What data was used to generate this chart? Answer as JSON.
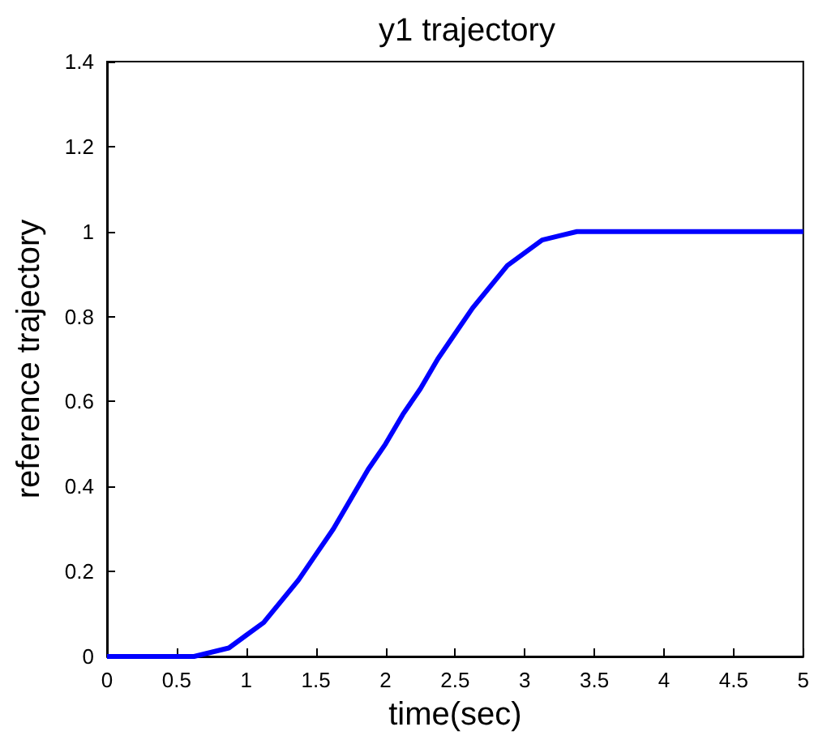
{
  "chart_data": {
    "type": "line",
    "title": "y1 trajectory",
    "xlabel": "time(sec)",
    "ylabel": "reference trajectory",
    "x": [
      0,
      0.5,
      0.625,
      0.75,
      0.875,
      1,
      1.125,
      1.25,
      1.375,
      1.5,
      1.625,
      1.75,
      1.875,
      2,
      2.125,
      2.25,
      2.375,
      2.5,
      2.625,
      2.75,
      2.875,
      3,
      3.125,
      3.25,
      3.375,
      3.5,
      4,
      4.5,
      5
    ],
    "series": [
      {
        "color": "#0000ff",
        "values": [
          0,
          0,
          0,
          0.01,
          0.02,
          0.05,
          0.08,
          0.13,
          0.18,
          0.24,
          0.3,
          0.37,
          0.44,
          0.5,
          0.57,
          0.63,
          0.7,
          0.76,
          0.82,
          0.87,
          0.92,
          0.95,
          0.98,
          0.99,
          1,
          1,
          1,
          1,
          1
        ]
      }
    ],
    "xlim": [
      0,
      5
    ],
    "xticks": [
      0,
      0.5,
      1,
      1.5,
      2,
      2.5,
      3,
      3.5,
      4,
      4.5,
      5
    ],
    "ylim": [
      0,
      1.4
    ],
    "yticks": [
      0,
      0.2,
      0.4,
      0.6,
      0.8,
      1,
      1.2,
      1.4
    ],
    "grid": false,
    "marker": "none",
    "line_style": "solid"
  }
}
